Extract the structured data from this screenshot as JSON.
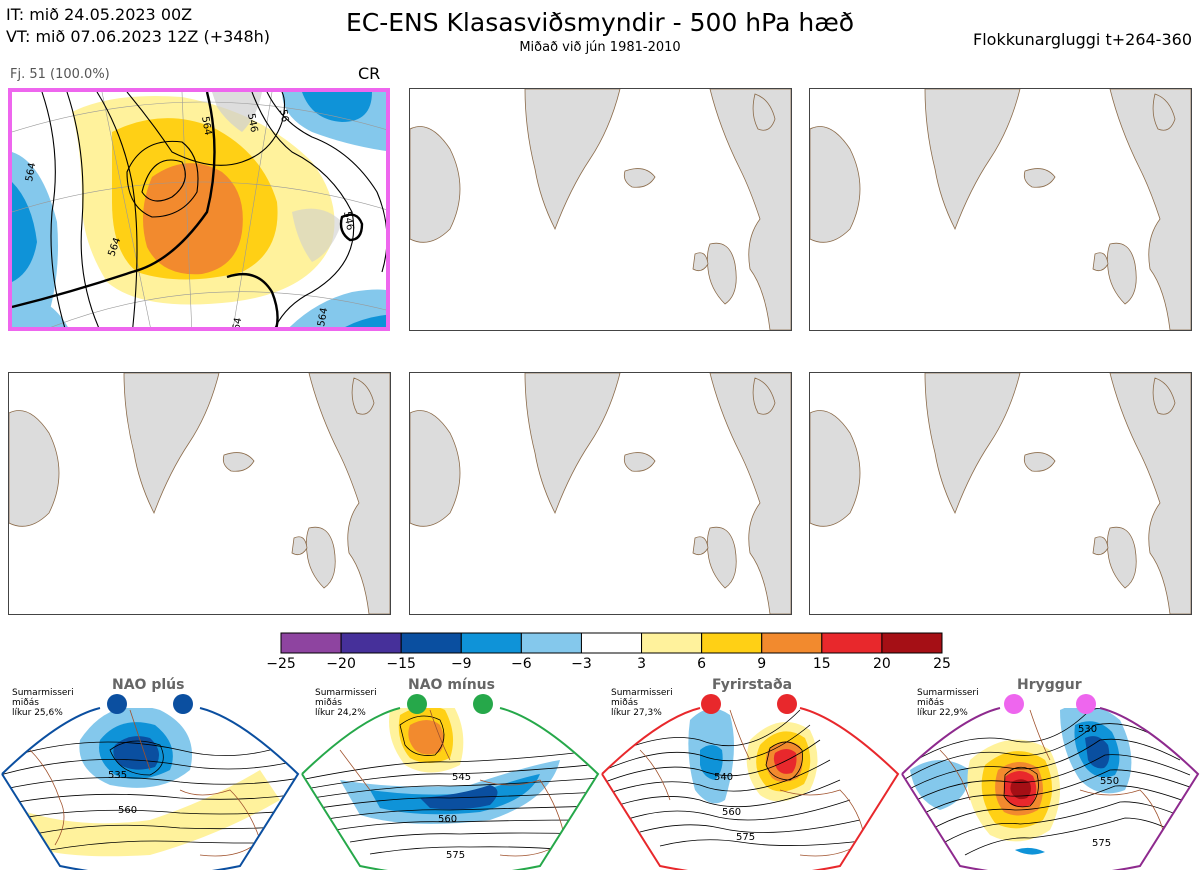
{
  "header": {
    "it_line": "IT: mið 24.05.2023 00Z",
    "vt_line": "VT: mið 07.06.2023 12Z  (+348h)",
    "title": "EC-ENS Klasasviðsmyndir - 500 hPa hæð",
    "subtitle": "Miðað við jún 1981-2010",
    "window": "Flokkunargluggi t+264-360"
  },
  "main_panel": {
    "label": "Fj. 51 (100.0%)",
    "tag": "CR",
    "border_color": "#ee66ee",
    "contour_labels": [
      "564",
      "564",
      "564",
      "564",
      "564",
      "546",
      "546",
      "56"
    ]
  },
  "chart_data": {
    "type": "heatmap",
    "title": "EC-ENS Klasasviðsmyndir - 500 hPa hæð",
    "colorbar": {
      "ticks": [
        -25,
        -20,
        -15,
        -9,
        -6,
        -3,
        3,
        6,
        9,
        15,
        20,
        25
      ],
      "tick_labels": [
        "−25",
        "−20",
        "−15",
        "−9",
        "−6",
        "−3",
        "3",
        "6",
        "9",
        "15",
        "20",
        "25"
      ],
      "colors": [
        "#8e44a0",
        "#46309a",
        "#0a4fa0",
        "#0f93d8",
        "#84c8ec",
        "#ffffff",
        "#fff29c",
        "#ffd015",
        "#f28a2e",
        "#e8282c",
        "#a50f15"
      ]
    },
    "regimes": [
      {
        "name": "NAO plús",
        "season": "Sumarmisseri",
        "stat": "miðás",
        "prob_label": "líkur 25,6%",
        "probability": 25.6,
        "color": "#0b4fa0",
        "contour_labels": [
          "535",
          "560"
        ]
      },
      {
        "name": "NAO mínus",
        "season": "Sumarmisseri",
        "stat": "miðás",
        "prob_label": "líkur 24,2%",
        "probability": 24.2,
        "color": "#26a84a",
        "contour_labels": [
          "545",
          "560",
          "575"
        ]
      },
      {
        "name": "Fyrirstaða",
        "season": "Sumarmisseri",
        "stat": "miðás",
        "prob_label": "líkur 27,3%",
        "probability": 27.3,
        "color": "#e8282c",
        "contour_labels": [
          "540",
          "560",
          "575"
        ]
      },
      {
        "name": "Hryggur",
        "season": "Sumarmisseri",
        "stat": "miðás",
        "prob_label": "líkur 22,9%",
        "probability": 22.9,
        "color": "#ee66ee",
        "contour_labels": [
          "530",
          "550",
          "575"
        ]
      }
    ]
  }
}
